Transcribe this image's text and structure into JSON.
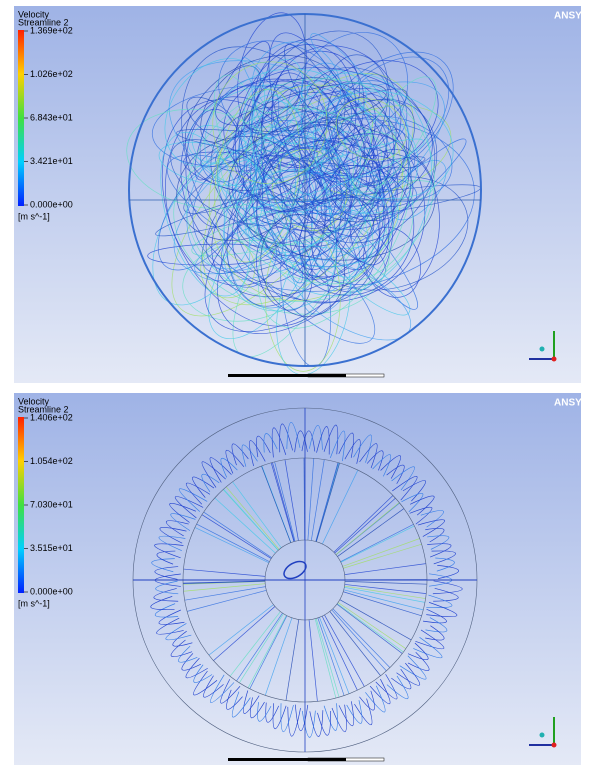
{
  "panels": [
    {
      "legend": {
        "title": "Velocity",
        "subtitle": "Streamline 2",
        "ticks": [
          "1.369e+02",
          "1.026e+02",
          "6.843e+01",
          "3.421e+01",
          "0.000e+00"
        ],
        "unit": "[m s^-1]"
      },
      "logo": "ANSYS"
    },
    {
      "legend": {
        "title": "Velocity",
        "subtitle": "Streamline 2",
        "ticks": [
          "1.406e+02",
          "1.054e+02",
          "7.030e+01",
          "3.515e+01",
          "0.000e+00"
        ],
        "unit": "[m s^-1]"
      },
      "logo": "ANSYS"
    }
  ]
}
